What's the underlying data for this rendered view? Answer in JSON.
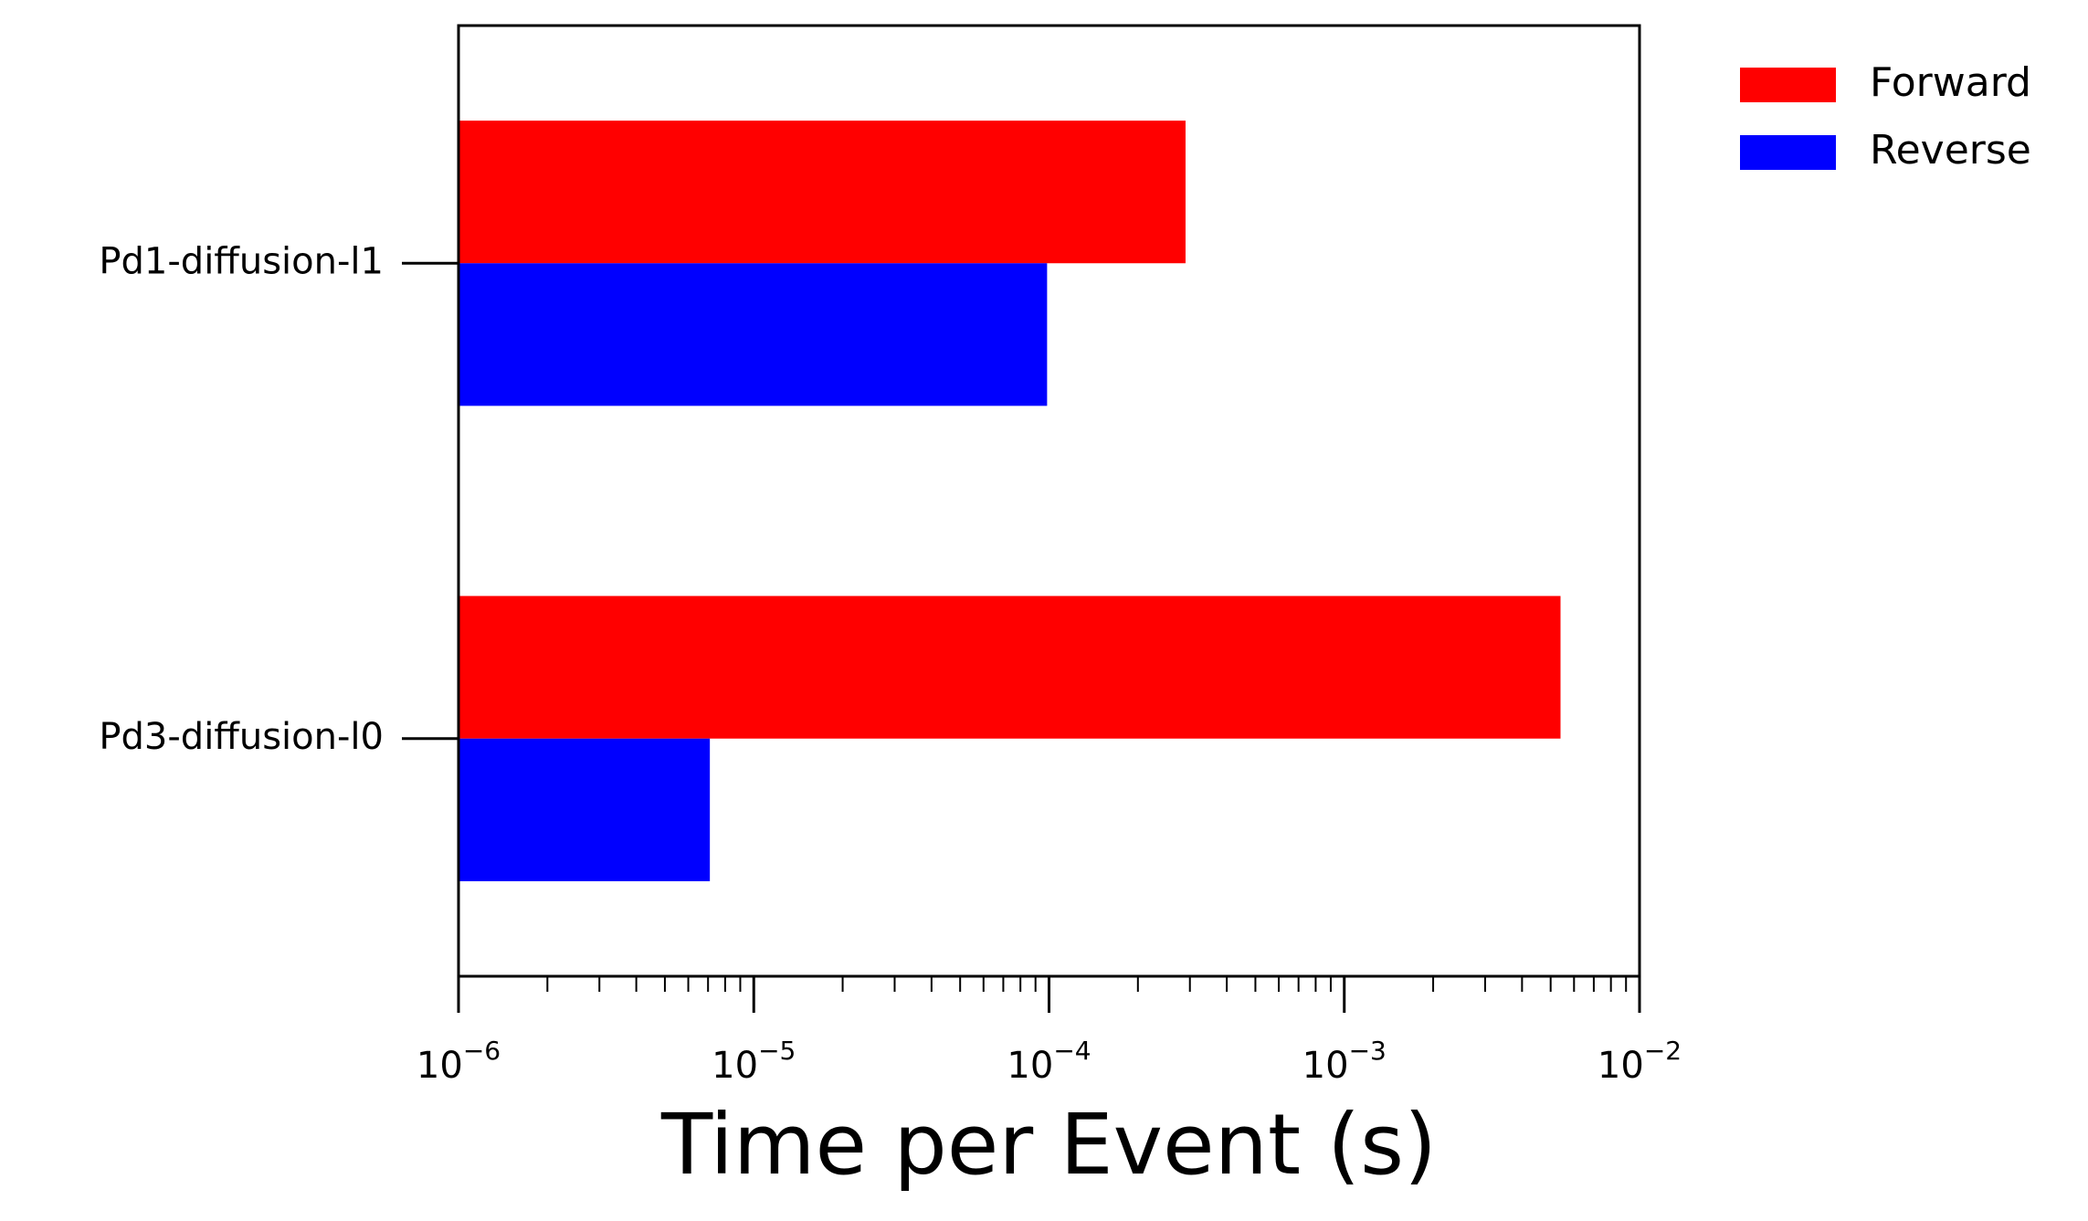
{
  "chart_data": {
    "type": "bar",
    "orientation": "horizontal",
    "categories": [
      "Pd1-diffusion-l1",
      "Pd3-diffusion-l0"
    ],
    "series": [
      {
        "name": "Forward",
        "color": "#ff0000",
        "values": [
          0.00029,
          0.0054
        ]
      },
      {
        "name": "Reverse",
        "color": "#0000ff",
        "values": [
          9.85e-05,
          7.1e-06
        ]
      }
    ],
    "xlabel": "Time per Event (s)",
    "xscale": "log",
    "xlim": [
      1e-06,
      0.01
    ],
    "x_ticks": [
      {
        "base": "10",
        "exp": "−6"
      },
      {
        "base": "10",
        "exp": "−5"
      },
      {
        "base": "10",
        "exp": "−4"
      },
      {
        "base": "10",
        "exp": "−3"
      },
      {
        "base": "10",
        "exp": "−2"
      }
    ],
    "grid": false,
    "legend_position": "outside-top-right"
  }
}
